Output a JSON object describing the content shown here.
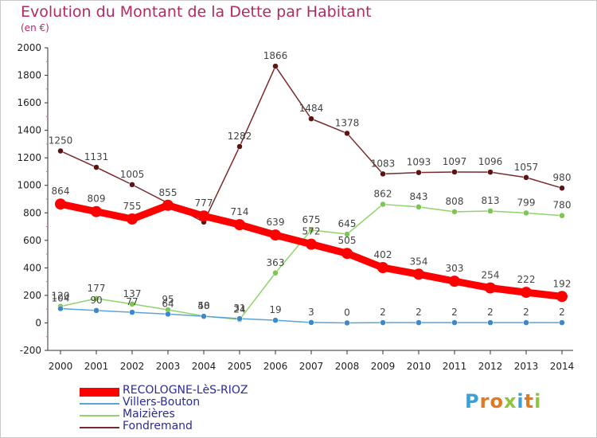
{
  "title": "Evolution du Montant de la Dette par Habitant",
  "subtitle": "(en €)",
  "logo": {
    "text": "Proxiti",
    "letter_colors": [
      "#3aa0d8",
      "#e07a20",
      "#e07a20",
      "#8cc63f",
      "#3aa0d8",
      "#e07a20",
      "#8cc63f"
    ]
  },
  "chart_data": {
    "type": "line",
    "title": "Evolution du Montant de la Dette par Habitant",
    "subtitle": "(en €)",
    "xlabel": "",
    "ylabel": "",
    "x": [
      "2000",
      "2001",
      "2002",
      "2003",
      "2004",
      "2005",
      "2006",
      "2007",
      "2008",
      "2009",
      "2010",
      "2011",
      "2012",
      "2013",
      "2014"
    ],
    "ylim": [
      -200,
      2000
    ],
    "yticks": [
      -200,
      0,
      200,
      400,
      600,
      800,
      1000,
      1200,
      1400,
      1600,
      1800,
      2000
    ],
    "grid": false,
    "legend": "bottom-left",
    "series": [
      {
        "name": "RECOLOGNE-LèS-RIOZ",
        "color": "#ff0000",
        "marker": "#ff0000",
        "values": [
          864,
          809,
          755,
          855,
          777,
          714,
          639,
          572,
          505,
          402,
          354,
          303,
          254,
          222,
          192
        ],
        "labels": [
          "864",
          "809",
          "755",
          "855",
          "777",
          "714",
          "639",
          "572",
          "505",
          "402",
          "354",
          "303",
          "254",
          "222",
          "192"
        ]
      },
      {
        "name": "Villers-Bouton",
        "color": "#5ba4d6",
        "marker": "#3d88c8",
        "values": [
          104,
          90,
          77,
          64,
          48,
          31,
          19,
          3,
          0,
          2,
          2,
          2,
          2,
          2,
          2
        ],
        "labels": [
          "104",
          "90",
          "77",
          "64",
          "48",
          "31",
          "19",
          "3",
          "0",
          "2",
          "2",
          "2",
          "2",
          "2",
          "2"
        ]
      },
      {
        "name": "Maizières",
        "color": "#8fd46a",
        "marker": "#7cc653",
        "values": [
          120,
          177,
          137,
          95,
          50,
          24,
          363,
          675,
          645,
          862,
          843,
          808,
          813,
          799,
          780
        ],
        "labels": [
          "120",
          "177",
          "137",
          "95",
          "50",
          "24",
          "363",
          "675",
          "645",
          "862",
          "843",
          "808",
          "813",
          "799",
          "780"
        ]
      },
      {
        "name": "Fondremand",
        "color": "#7a2a2a",
        "marker": "#5a1414",
        "values": [
          1250,
          1131,
          1005,
          871,
          733,
          1282,
          1866,
          1484,
          1378,
          1083,
          1093,
          1097,
          1096,
          1057,
          980
        ],
        "labels": [
          "1250",
          "1131",
          "1005",
          "",
          "",
          "1282",
          "1866",
          "1484",
          "1378",
          "1083",
          "1093",
          "1097",
          "1096",
          "1057",
          "980"
        ]
      }
    ]
  }
}
